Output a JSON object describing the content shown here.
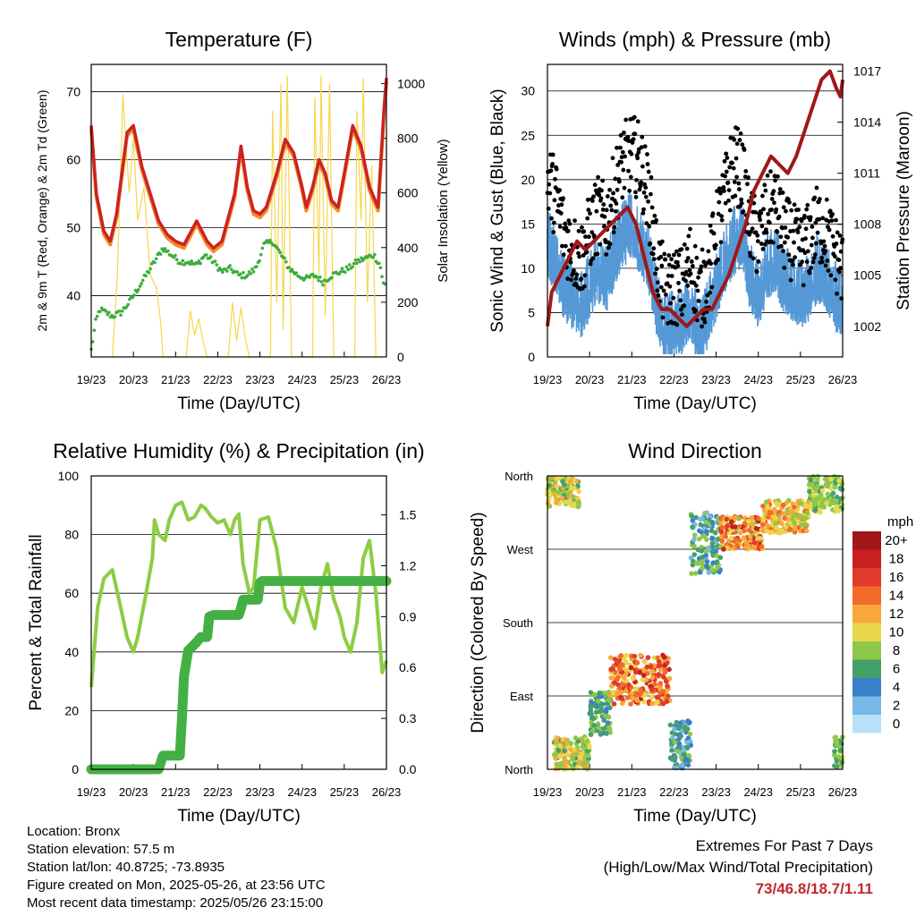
{
  "colors": {
    "temp": "#cc2222",
    "temp9m": "#f28c28",
    "dew": "#3cad3c",
    "solar": "#f7d64c",
    "wind": "#5599d6",
    "gust": "#000000",
    "pressure": "#a01818",
    "rh": "#8ecc44",
    "precip": "#44b044",
    "extremes": "#c0282d"
  },
  "x_ticks": [
    "19/23",
    "20/23",
    "21/23",
    "22/23",
    "23/23",
    "24/23",
    "25/23",
    "26/23"
  ],
  "chart_data": [
    {
      "type": "line",
      "title": "Temperature (F)",
      "xlabel": "Time (Day/UTC)",
      "ylabel": "2m & 9m T (Red, Orange) & 2m Td (Green)",
      "y2label": "Solar Insolation (Yellow)",
      "ylim": [
        31,
        74
      ],
      "y2lim": [
        0,
        1070
      ],
      "yticks": [
        40,
        50,
        60,
        70
      ],
      "y2ticks": [
        0,
        200,
        400,
        600,
        800,
        1000
      ],
      "x_ticks": [
        "19/23",
        "20/23",
        "21/23",
        "22/23",
        "23/23",
        "24/23",
        "25/23",
        "26/23"
      ],
      "series": [
        {
          "name": "2m T",
          "axis": "left",
          "x": [
            0,
            0.12,
            0.3,
            0.45,
            0.6,
            0.85,
            1.0,
            1.2,
            1.4,
            1.6,
            1.8,
            2.0,
            2.2,
            2.5,
            2.75,
            2.9,
            3.1,
            3.4,
            3.55,
            3.7,
            3.85,
            4.0,
            4.15,
            4.25,
            4.4,
            4.6,
            4.8,
            5.0,
            5.1,
            5.25,
            5.4,
            5.55,
            5.7,
            5.85,
            6.0,
            6.2,
            6.4,
            6.6,
            6.8,
            6.95,
            7.0
          ],
          "y": [
            65,
            55,
            49.5,
            48,
            52,
            64,
            65,
            59,
            55,
            51,
            49,
            48,
            47.5,
            51,
            48,
            47,
            48,
            55,
            62,
            56,
            52.5,
            52,
            53,
            55,
            58,
            63,
            61,
            56,
            53,
            56,
            60,
            58,
            54,
            53,
            58,
            65,
            62,
            56,
            53,
            68,
            72
          ]
        },
        {
          "name": "9m T",
          "axis": "left",
          "x": [
            0,
            0.12,
            0.3,
            0.45,
            0.6,
            0.85,
            1.0,
            1.2,
            1.4,
            1.6,
            1.8,
            2.0,
            2.2,
            2.5,
            2.75,
            2.9,
            3.1,
            3.4,
            3.55,
            3.7,
            3.85,
            4.0,
            4.15,
            4.25,
            4.4,
            4.6,
            4.8,
            5.0,
            5.1,
            5.25,
            5.4,
            5.55,
            5.7,
            5.85,
            6.0,
            6.2,
            6.4,
            6.6,
            6.8,
            6.95,
            7.0
          ],
          "y": [
            64.5,
            54.5,
            49,
            47.5,
            51.5,
            63.5,
            64.5,
            58.5,
            54.5,
            50.5,
            48.5,
            47.5,
            47,
            50.5,
            47.5,
            46.5,
            47.5,
            54.5,
            61.5,
            55.5,
            52,
            51.5,
            52.5,
            54.5,
            57.5,
            62.5,
            60.5,
            55.5,
            52.5,
            55.5,
            59.5,
            57.5,
            53.5,
            52.5,
            57.5,
            64.5,
            61.5,
            55.5,
            52.5,
            67.5,
            71.5
          ]
        },
        {
          "name": "2m Td",
          "axis": "left",
          "x": [
            0,
            0.1,
            0.2,
            0.5,
            0.7,
            0.9,
            1.1,
            1.3,
            1.5,
            1.7,
            1.9,
            2.1,
            2.3,
            2.5,
            2.7,
            2.9,
            3.1,
            3.3,
            3.5,
            3.7,
            3.9,
            4.1,
            4.3,
            4.5,
            4.7,
            4.9,
            5.1,
            5.3,
            5.5,
            5.7,
            5.9,
            6.1,
            6.3,
            6.5,
            6.7,
            6.85,
            6.95,
            7.0
          ],
          "y": [
            32,
            36,
            38,
            37,
            37.5,
            39,
            41,
            43,
            45,
            47,
            46,
            45,
            45,
            44.5,
            46,
            45,
            43.5,
            44,
            43,
            43,
            44,
            47.5,
            48,
            46,
            44,
            43,
            42.5,
            43,
            42,
            43,
            43.5,
            44,
            45,
            45.5,
            46,
            44.5,
            41,
            43
          ]
        },
        {
          "name": "Solar",
          "axis": "right",
          "x": [
            0.5,
            0.62,
            0.75,
            0.9,
            1.0,
            1.1,
            1.25,
            1.4,
            1.55,
            1.65,
            1.7,
            2.25,
            2.35,
            2.45,
            2.55,
            2.65,
            2.75,
            3.25,
            3.35,
            3.45,
            3.55,
            3.65,
            3.75,
            4.25,
            4.3,
            4.4,
            4.5,
            4.55,
            4.65,
            4.75,
            5.25,
            5.3,
            5.4,
            5.45,
            5.55,
            5.65,
            5.75,
            6.25,
            6.3,
            6.4,
            6.45,
            6.55,
            6.65,
            6.75
          ],
          "y": [
            0,
            300,
            960,
            600,
            800,
            500,
            620,
            300,
            250,
            120,
            0,
            0,
            170,
            80,
            140,
            60,
            0,
            0,
            200,
            60,
            180,
            70,
            0,
            0,
            900,
            200,
            1000,
            100,
            1030,
            0,
            0,
            950,
            300,
            1030,
            150,
            1000,
            0,
            0,
            900,
            500,
            1020,
            200,
            700,
            0
          ]
        }
      ]
    },
    {
      "type": "scatter",
      "title": "Winds (mph) & Pressure (mb)",
      "xlabel": "Time (Day/UTC)",
      "ylabel": "Sonic Wind & Gust (Blue, Black)",
      "y2label": "Station Pressure (Maroon)",
      "ylim": [
        0,
        33
      ],
      "y2lim": [
        1000.2,
        1017.4
      ],
      "yticks": [
        0,
        5,
        10,
        15,
        20,
        25,
        30
      ],
      "y2ticks": [
        1002,
        1005,
        1008,
        1011,
        1014,
        1017
      ],
      "x_ticks": [
        "19/23",
        "20/23",
        "21/23",
        "22/23",
        "23/23",
        "24/23",
        "25/23",
        "26/23"
      ],
      "series": [
        {
          "name": "Wind",
          "axis": "left",
          "x": [
            0,
            0.2,
            0.4,
            0.6,
            0.8,
            1.0,
            1.2,
            1.4,
            1.6,
            1.8,
            2.0,
            2.2,
            2.4,
            2.6,
            2.8,
            3.0,
            3.2,
            3.4,
            3.6,
            3.8,
            4.0,
            4.2,
            4.4,
            4.6,
            4.8,
            5.0,
            5.2,
            5.4,
            5.6,
            5.8,
            6.0,
            6.2,
            6.4,
            6.6,
            6.8,
            7.0
          ],
          "y": [
            14,
            12,
            9,
            8,
            7,
            9,
            11,
            10,
            13,
            15,
            16,
            14,
            12,
            7,
            4,
            5,
            5,
            7,
            3,
            6,
            9,
            12,
            14,
            15,
            10,
            8,
            11,
            12,
            10,
            9,
            8,
            9,
            11,
            10,
            8,
            7
          ],
          "spread": 3
        },
        {
          "name": "Gust",
          "axis": "left",
          "x": [
            0,
            0.2,
            0.4,
            0.6,
            0.8,
            1.0,
            1.2,
            1.4,
            1.6,
            1.8,
            2.0,
            2.2,
            2.4,
            2.6,
            2.8,
            3.0,
            3.2,
            3.4,
            3.6,
            3.8,
            4.0,
            4.2,
            4.4,
            4.6,
            4.8,
            5.0,
            5.2,
            5.4,
            5.6,
            5.8,
            6.0,
            6.2,
            6.4,
            6.6,
            6.8,
            7.0
          ],
          "y": [
            20,
            18,
            14,
            12,
            11,
            14,
            16,
            15,
            19,
            22,
            23,
            22,
            18,
            11,
            7,
            8,
            8,
            11,
            7,
            9,
            14,
            18,
            22,
            21,
            15,
            13,
            16,
            17,
            14,
            13,
            12,
            13,
            15,
            14,
            12,
            10
          ],
          "spread": 4.5
        },
        {
          "name": "Pressure",
          "axis": "right",
          "x": [
            0,
            0.1,
            0.3,
            0.5,
            0.7,
            0.9,
            1.1,
            1.3,
            1.5,
            1.7,
            1.9,
            2.1,
            2.3,
            2.5,
            2.7,
            2.9,
            3.1,
            3.3,
            3.5,
            3.7,
            3.9,
            4.1,
            4.3,
            4.5,
            4.7,
            4.9,
            5.1,
            5.3,
            5.5,
            5.7,
            5.9,
            6.1,
            6.3,
            6.5,
            6.7,
            6.85,
            6.95,
            7.0
          ],
          "y": [
            1002,
            1004,
            1005,
            1006,
            1007,
            1006.5,
            1007,
            1007.5,
            1008,
            1008.5,
            1009,
            1008,
            1006,
            1004,
            1003,
            1003,
            1002.5,
            1002,
            1002.5,
            1003,
            1003,
            1004,
            1005,
            1006.5,
            1008,
            1010,
            1011,
            1012,
            1011.5,
            1011,
            1012,
            1013.5,
            1015,
            1016.5,
            1017,
            1016,
            1015.5,
            1016.5
          ]
        }
      ]
    },
    {
      "type": "line",
      "title": "Relative Humidity (%) & Precipitation (in)",
      "xlabel": "Time (Day/UTC)",
      "ylabel": "Percent & Total Rainfall",
      "ylim": [
        0,
        100
      ],
      "y2lim": [
        0,
        1.73
      ],
      "yticks": [
        0,
        20,
        40,
        60,
        80,
        100
      ],
      "y2ticks": [
        "0.0",
        "0.3",
        "0.6",
        "0.9",
        "1.2",
        "1.5"
      ],
      "x_ticks": [
        "19/23",
        "20/23",
        "21/23",
        "22/23",
        "23/23",
        "24/23",
        "25/23",
        "26/23"
      ],
      "series": [
        {
          "name": "RH",
          "axis": "left",
          "x": [
            0,
            0.15,
            0.3,
            0.5,
            0.7,
            0.85,
            1.0,
            1.1,
            1.3,
            1.45,
            1.5,
            1.6,
            1.75,
            1.85,
            2.0,
            2.15,
            2.3,
            2.45,
            2.6,
            2.7,
            2.85,
            3.0,
            3.15,
            3.3,
            3.4,
            3.5,
            3.6,
            3.75,
            3.85,
            4.0,
            4.2,
            4.4,
            4.5,
            4.6,
            4.8,
            5.0,
            5.15,
            5.3,
            5.45,
            5.6,
            5.75,
            5.9,
            6.0,
            6.15,
            6.3,
            6.45,
            6.6,
            6.75,
            6.9,
            7.0
          ],
          "y": [
            28,
            55,
            65,
            68,
            55,
            45,
            40,
            45,
            60,
            72,
            85,
            80,
            78,
            85,
            90,
            91,
            85,
            86,
            90,
            89,
            86,
            84,
            85,
            80,
            85,
            87,
            70,
            60,
            62,
            85,
            86,
            75,
            65,
            55,
            50,
            62,
            55,
            48,
            62,
            70,
            58,
            52,
            45,
            40,
            50,
            72,
            78,
            60,
            33,
            37
          ]
        },
        {
          "name": "Precipitation",
          "axis": "right",
          "x": [
            0,
            1.6,
            1.7,
            2.1,
            2.15,
            2.2,
            2.3,
            2.5,
            2.6,
            2.75,
            2.8,
            2.9,
            3.0,
            3.5,
            3.55,
            3.6,
            3.95,
            4.0,
            4.05,
            7.0
          ],
          "y": [
            0,
            0,
            0.08,
            0.08,
            0.3,
            0.55,
            0.7,
            0.75,
            0.78,
            0.78,
            0.9,
            0.91,
            0.91,
            0.91,
            0.95,
            1.0,
            1.0,
            1.1,
            1.11,
            1.11
          ]
        }
      ]
    },
    {
      "type": "scatter",
      "title": "Wind Direction",
      "xlabel": "Time (Day/UTC)",
      "ylabel": "Direction (Colored By Speed)",
      "yticks": [
        "North",
        "East",
        "South",
        "West",
        "North"
      ],
      "ylim": [
        0,
        360
      ],
      "x_ticks": [
        "19/23",
        "20/23",
        "21/23",
        "22/23",
        "23/23",
        "24/23",
        "25/23",
        "26/23"
      ],
      "legend": {
        "title": "mph",
        "labels": [
          "20+",
          "18",
          "16",
          "14",
          "12",
          "10",
          "8",
          "6",
          "4",
          "2",
          "0"
        ],
        "colors": [
          "#a01818",
          "#c82020",
          "#e03a2a",
          "#f26a2a",
          "#f7a83a",
          "#e8d84a",
          "#8ec84a",
          "#44a06a",
          "#3a80c8",
          "#78b8e6",
          "#b8e0f8"
        ],
        "placement": "right"
      },
      "clusters": [
        {
          "x": [
            0,
            0.75
          ],
          "y": [
            322,
            358
          ],
          "speed": [
            6,
            12
          ]
        },
        {
          "x": [
            0.15,
            1.0
          ],
          "y": [
            0,
            40
          ],
          "speed": [
            6,
            13
          ]
        },
        {
          "x": [
            1.0,
            1.5
          ],
          "y": [
            40,
            95
          ],
          "speed": [
            4,
            9
          ]
        },
        {
          "x": [
            1.5,
            2.9
          ],
          "y": [
            80,
            140
          ],
          "speed": [
            10,
            18
          ]
        },
        {
          "x": [
            2.9,
            3.4
          ],
          "y": [
            0,
            60
          ],
          "speed": [
            2,
            8
          ]
        },
        {
          "x": [
            3.4,
            4.1
          ],
          "y": [
            240,
            315
          ],
          "speed": [
            2,
            9
          ]
        },
        {
          "x": [
            4.1,
            5.1
          ],
          "y": [
            270,
            310
          ],
          "speed": [
            8,
            18
          ]
        },
        {
          "x": [
            5.1,
            6.2
          ],
          "y": [
            290,
            330
          ],
          "speed": [
            8,
            14
          ]
        },
        {
          "x": [
            6.2,
            7.0
          ],
          "y": [
            315,
            360
          ],
          "speed": [
            6,
            10
          ]
        },
        {
          "x": [
            6.8,
            7.0
          ],
          "y": [
            0,
            40
          ],
          "speed": [
            6,
            10
          ]
        }
      ]
    }
  ],
  "footer": {
    "location": "Location: Bronx",
    "elevation": "Station elevation: 57.5 m",
    "latlon": "Station lat/lon: 40.8725; -73.8935",
    "created": "Figure created on Mon, 2025-05-26, at 23:56 UTC",
    "recent": "Most recent data timestamp: 2025/05/26 23:15:00"
  },
  "extremes": {
    "title": "Extremes For Past 7 Days",
    "subtitle": "(High/Low/Max Wind/Total Precipitation)",
    "values": "73/46.8/18.7/1.11"
  }
}
